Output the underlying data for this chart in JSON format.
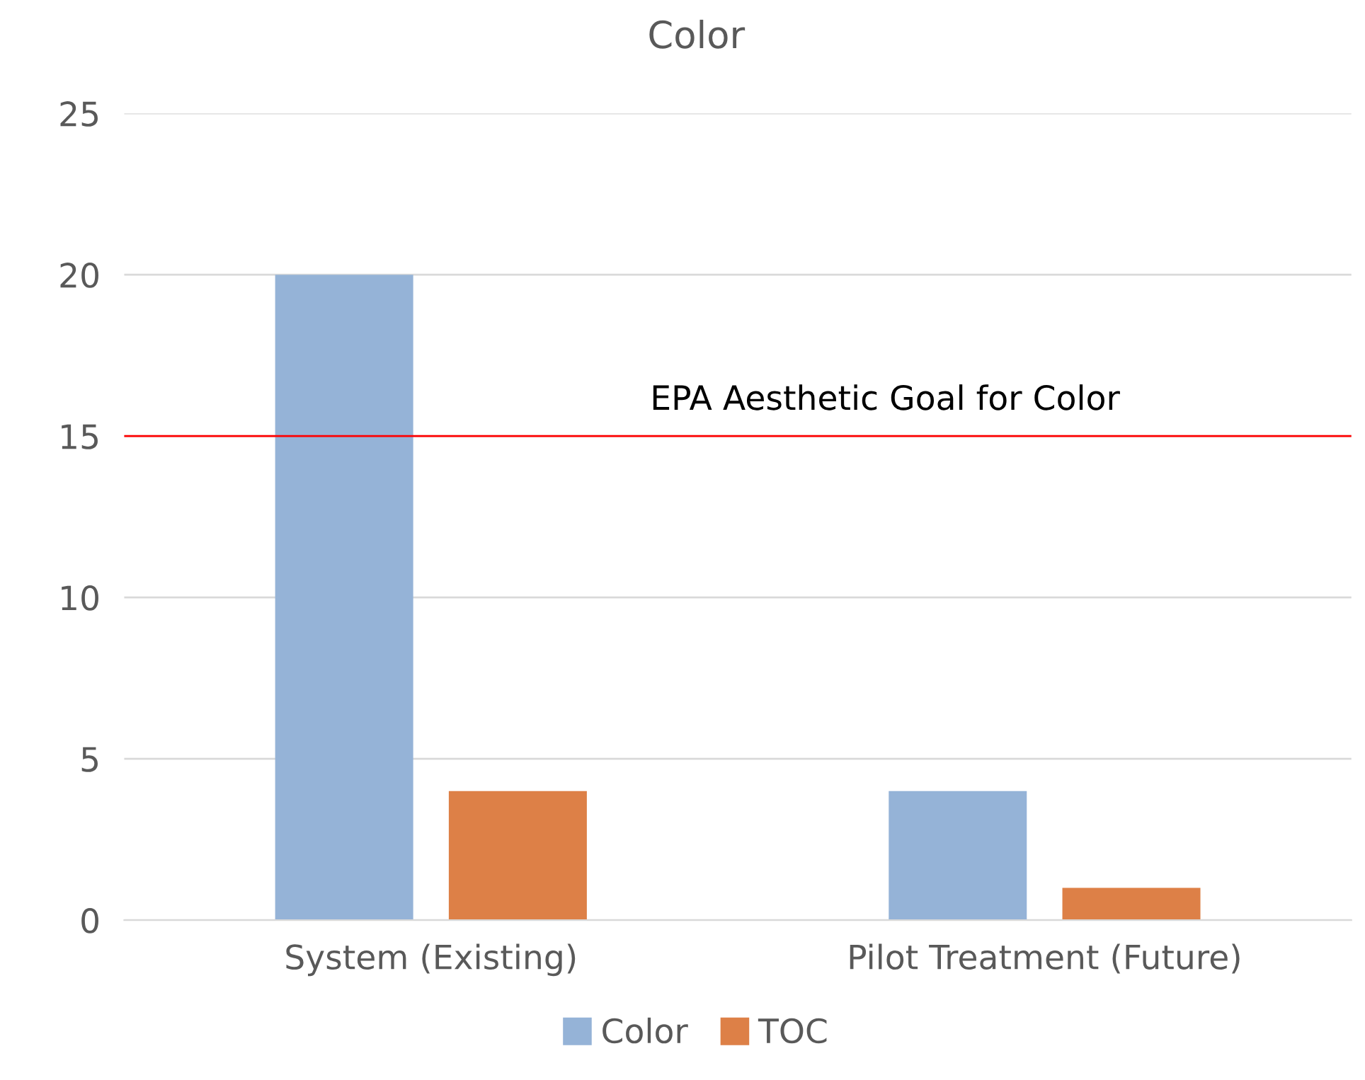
{
  "chart_data": {
    "type": "bar",
    "title": "Color",
    "categories": [
      "System (Existing)",
      "Pilot Treatment (Future)"
    ],
    "series": [
      {
        "name": "Color",
        "color": "#95b3d7",
        "values": [
          20,
          4
        ]
      },
      {
        "name": "TOC",
        "color": "#dd8047",
        "values": [
          4,
          1
        ]
      }
    ],
    "ylim": [
      0,
      25
    ],
    "yticks": [
      0,
      5,
      10,
      15,
      20,
      25
    ],
    "grid": "y",
    "legend": "bottom",
    "ref_lines": [
      {
        "axis": "y",
        "value": 15,
        "label": "EPA Aesthetic Goal for Color",
        "color": "#ff0000"
      }
    ]
  }
}
